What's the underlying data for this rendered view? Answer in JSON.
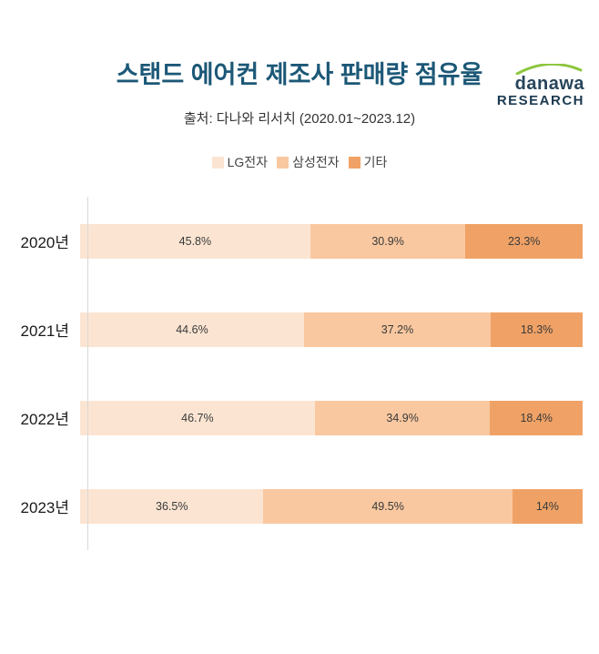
{
  "logo": {
    "brand": "danawa",
    "sub": "RESEARCH",
    "swoosh_color": "#8dc63f"
  },
  "header": {
    "title": "스탠드 에어컨 제조사 판매량 점유율",
    "source": "출처: 다나와 리서치 (2020.01~2023.12)"
  },
  "chart_data": {
    "type": "bar",
    "orientation": "horizontal-stacked",
    "title": "스탠드 에어컨 제조사 판매량 점유율",
    "subtitle": "출처: 다나와 리서치 (2020.01~2023.12)",
    "categories": [
      "2020년",
      "2021년",
      "2022년",
      "2023년"
    ],
    "series": [
      {
        "name": "LG전자",
        "color": "#fbe5d2",
        "values": [
          45.8,
          44.6,
          46.7,
          36.5
        ],
        "labels": [
          "45.8%",
          "44.6%",
          "46.7%",
          "36.5%"
        ]
      },
      {
        "name": "삼성전자",
        "color": "#f9c8a0",
        "values": [
          30.9,
          37.2,
          34.9,
          49.5
        ],
        "labels": [
          "30.9%",
          "37.2%",
          "34.9%",
          "49.5%"
        ]
      },
      {
        "name": "기타",
        "color": "#f0a266",
        "values": [
          23.3,
          18.3,
          18.4,
          14
        ],
        "labels": [
          "23.3%",
          "18.3%",
          "18.4%",
          "14%"
        ]
      }
    ],
    "xlim": [
      0,
      100
    ],
    "value_unit": "%",
    "legend_position": "top-center",
    "grid": false
  }
}
